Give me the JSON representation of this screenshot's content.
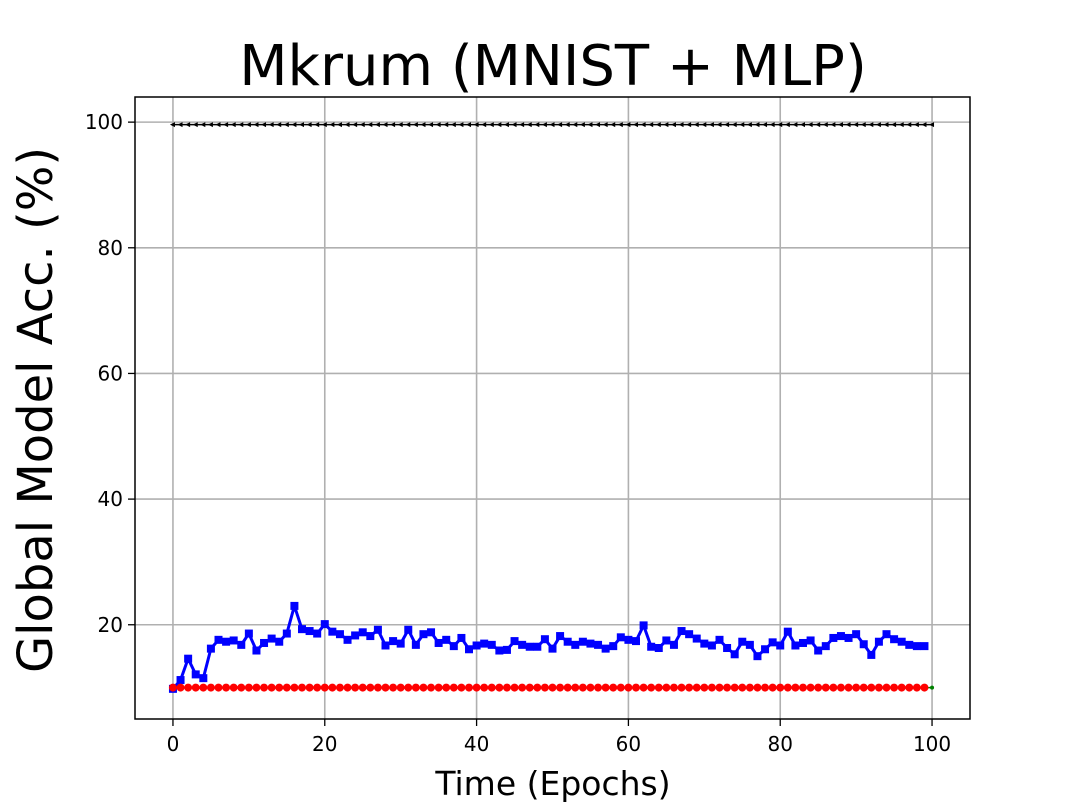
{
  "chart_data": {
    "type": "line",
    "title": "Mkrum (MNIST + MLP)",
    "xlabel": "Time (Epochs)",
    "ylabel": "Global Model Acc. (%)",
    "xlim": [
      -5,
      105
    ],
    "ylim": [
      5,
      104
    ],
    "xticks": [
      0,
      20,
      40,
      60,
      80,
      100
    ],
    "yticks": [
      20,
      40,
      60,
      80,
      100
    ],
    "grid": true,
    "series": [
      {
        "color": "#000000",
        "marker": "triangle-left",
        "x_start": 0,
        "x_end": 100,
        "values": [
          99.6,
          99.6,
          99.6,
          99.6,
          99.6,
          99.6,
          99.6,
          99.6,
          99.6,
          99.6,
          99.6,
          99.6,
          99.6,
          99.6,
          99.6,
          99.6,
          99.6,
          99.6,
          99.6,
          99.6,
          99.6,
          99.6,
          99.6,
          99.6,
          99.6,
          99.6,
          99.6,
          99.6,
          99.6,
          99.6,
          99.6,
          99.6,
          99.6,
          99.6,
          99.6,
          99.6,
          99.6,
          99.6,
          99.6,
          99.6,
          99.6,
          99.6,
          99.6,
          99.6,
          99.6,
          99.6,
          99.6,
          99.6,
          99.6,
          99.6,
          99.6,
          99.6,
          99.6,
          99.6,
          99.6,
          99.6,
          99.6,
          99.6,
          99.6,
          99.6,
          99.6,
          99.6,
          99.6,
          99.6,
          99.6,
          99.6,
          99.6,
          99.6,
          99.6,
          99.6,
          99.6,
          99.6,
          99.6,
          99.6,
          99.6,
          99.6,
          99.6,
          99.6,
          99.6,
          99.6,
          99.6,
          99.6,
          99.6,
          99.6,
          99.6,
          99.6,
          99.6,
          99.6,
          99.6,
          99.6,
          99.6,
          99.6,
          99.6,
          99.6,
          99.6,
          99.6,
          99.6,
          99.6,
          99.6,
          99.6,
          99.6
        ]
      },
      {
        "color": "#008000",
        "marker": "dot",
        "x_start": 0,
        "x_end": 100,
        "values": [
          10,
          10,
          10,
          10,
          10,
          10,
          10,
          10,
          10,
          10,
          10,
          10,
          10,
          10,
          10,
          10,
          10,
          10,
          10,
          10,
          10,
          10,
          10,
          10,
          10,
          10,
          10,
          10,
          10,
          10,
          10,
          10,
          10,
          10,
          10,
          10,
          10,
          10,
          10,
          10,
          10,
          10,
          10,
          10,
          10,
          10,
          10,
          10,
          10,
          10,
          10,
          10,
          10,
          10,
          10,
          10,
          10,
          10,
          10,
          10,
          10,
          10,
          10,
          10,
          10,
          10,
          10,
          10,
          10,
          10,
          10,
          10,
          10,
          10,
          10,
          10,
          10,
          10,
          10,
          10,
          10,
          10,
          10,
          10,
          10,
          10,
          10,
          10,
          10,
          10,
          10,
          10,
          10,
          10,
          10,
          10,
          10,
          10,
          10,
          10,
          10
        ]
      },
      {
        "color": "#0000ff",
        "marker": "square",
        "x_start": 0,
        "x_end": 99,
        "values": [
          9.8,
          11.2,
          14.6,
          12.1,
          11.5,
          16.2,
          17.6,
          17.3,
          17.5,
          16.8,
          18.6,
          15.9,
          17.1,
          17.8,
          17.3,
          18.6,
          23.0,
          19.3,
          19.0,
          18.6,
          20.1,
          18.9,
          18.5,
          17.6,
          18.3,
          18.8,
          18.2,
          19.2,
          16.7,
          17.4,
          17.0,
          19.2,
          16.8,
          18.5,
          18.8,
          17.1,
          17.6,
          16.6,
          17.9,
          16.1,
          16.7,
          17.0,
          16.8,
          15.9,
          16.0,
          17.4,
          16.8,
          16.5,
          16.5,
          17.7,
          16.2,
          18.2,
          17.3,
          16.8,
          17.3,
          17.0,
          16.8,
          16.2,
          16.6,
          18.0,
          17.6,
          17.4,
          19.9,
          16.5,
          16.3,
          17.5,
          16.8,
          19.0,
          18.5,
          17.8,
          17.0,
          16.7,
          17.6,
          16.3,
          15.3,
          17.3,
          16.8,
          15.0,
          16.1,
          17.2,
          16.7,
          18.9,
          16.7,
          17.1,
          17.5,
          15.9,
          16.6,
          17.9,
          18.2,
          17.9,
          18.5,
          16.9,
          15.2,
          17.3,
          18.5,
          17.7,
          17.3,
          16.8,
          16.6,
          16.6
        ]
      },
      {
        "color": "#ff0000",
        "marker": "circle",
        "x_start": 0,
        "x_end": 99,
        "values": [
          10,
          10,
          10,
          10,
          10,
          10,
          10,
          10,
          10,
          10,
          10,
          10,
          10,
          10,
          10,
          10,
          10,
          10,
          10,
          10,
          10,
          10,
          10,
          10,
          10,
          10,
          10,
          10,
          10,
          10,
          10,
          10,
          10,
          10,
          10,
          10,
          10,
          10,
          10,
          10,
          10,
          10,
          10,
          10,
          10,
          10,
          10,
          10,
          10,
          10,
          10,
          10,
          10,
          10,
          10,
          10,
          10,
          10,
          10,
          10,
          10,
          10,
          10,
          10,
          10,
          10,
          10,
          10,
          10,
          10,
          10,
          10,
          10,
          10,
          10,
          10,
          10,
          10,
          10,
          10,
          10,
          10,
          10,
          10,
          10,
          10,
          10,
          10,
          10,
          10,
          10,
          10,
          10,
          10,
          10,
          10,
          10,
          10,
          10,
          10
        ]
      }
    ]
  }
}
